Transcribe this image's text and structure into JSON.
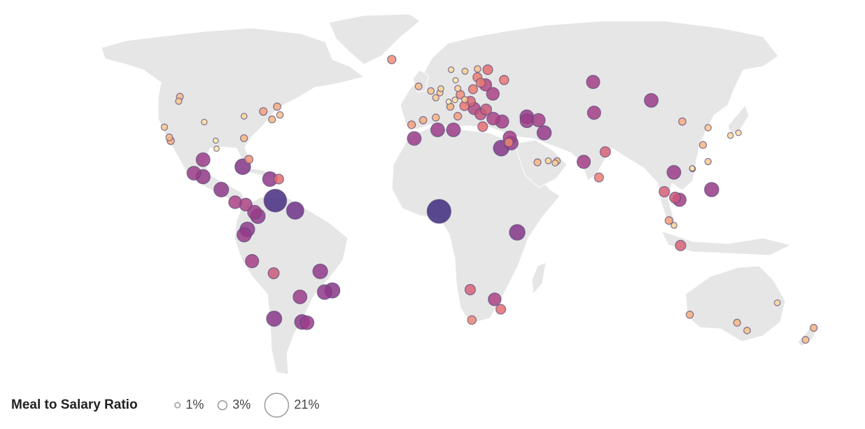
{
  "legend": {
    "title": "Meal to Salary Ratio",
    "sizes": [
      {
        "value": 1,
        "label": "1%"
      },
      {
        "value": 3,
        "label": "3%"
      },
      {
        "value": 21,
        "label": "21%"
      }
    ]
  },
  "colors": [
    "#fcf0ad",
    "#f6b47f",
    "#e8706e",
    "#a63f86",
    "#6b2f8a",
    "#3e2a7e"
  ],
  "points": [
    [
      -9,
      38.7,
      2.2
    ],
    [
      -3.7,
      40.4,
      2
    ],
    [
      2.2,
      41.4,
      1.8
    ],
    [
      2.3,
      48.9,
      1.5
    ],
    [
      -0.1,
      51.5,
      1.6
    ],
    [
      -6.3,
      53.3,
      1.7
    ],
    [
      4.9,
      52.4,
      1.3
    ],
    [
      4.4,
      50.8,
      1.4
    ],
    [
      13.4,
      52.5,
      1.4
    ],
    [
      11.6,
      48.1,
      1.2
    ],
    [
      8.5,
      47.4,
      1.0
    ],
    [
      16.4,
      48.2,
      1.5
    ],
    [
      12.5,
      41.9,
      2.2
    ],
    [
      9.2,
      45.5,
      1.9
    ],
    [
      23.7,
      38,
      3.5
    ],
    [
      21,
      52.2,
      3
    ],
    [
      14.4,
      50.1,
      2.6
    ],
    [
      19,
      47.5,
      3.8
    ],
    [
      26.1,
      44.4,
      4.5
    ],
    [
      23.3,
      42.7,
      4.8
    ],
    [
      20.5,
      44.8,
      5.5
    ],
    [
      30.5,
      50.4,
      6
    ],
    [
      37.6,
      55.8,
      3.2
    ],
    [
      30.3,
      59.9,
      3.5
    ],
    [
      18,
      59.3,
      1.4
    ],
    [
      10.7,
      59.9,
      1.2
    ],
    [
      12.6,
      55.7,
      1.1
    ],
    [
      24.9,
      60.2,
      1.6
    ],
    [
      24.1,
      56.9,
      3
    ],
    [
      25.3,
      54.7,
      3
    ],
    [
      27.6,
      53.9,
      5.5
    ],
    [
      29,
      41,
      6
    ],
    [
      32.9,
      39.9,
      6.5
    ],
    [
      -21.9,
      64.1,
      2.6
    ],
    [
      44.8,
      41.7,
      7
    ],
    [
      44.5,
      40.2,
      7
    ],
    [
      49.9,
      40.4,
      6.5
    ],
    [
      16,
      45.8,
      3.2
    ],
    [
      34.8,
      32.1,
      2.8
    ],
    [
      35.9,
      31.9,
      7
    ],
    [
      31.2,
      30,
      9
    ],
    [
      35.5,
      33.9,
      6.5
    ],
    [
      51.4,
      35.7,
      7.5
    ],
    [
      46.7,
      24.7,
      1.8
    ],
    [
      55.3,
      25.2,
      1.6
    ],
    [
      51.5,
      25.3,
      1.3
    ],
    [
      54.4,
      24.5,
      1.4
    ],
    [
      67,
      24.9,
      6.5
    ],
    [
      77.2,
      28.6,
      4
    ],
    [
      72.9,
      19.1,
      3
    ],
    [
      76.9,
      43.2,
      6.5
    ],
    [
      82.9,
      55,
      6.5
    ],
    [
      106.9,
      47.9,
      7
    ],
    [
      3,
      36.8,
      7
    ],
    [
      10.2,
      36.8,
      7
    ],
    [
      -7.6,
      33.6,
      7
    ],
    [
      3.4,
      6.5,
      21
    ],
    [
      36.8,
      -1.3,
      9
    ],
    [
      17.1,
      -22.6,
      4
    ],
    [
      28,
      -26.2,
      6
    ],
    [
      31,
      -29.9,
      3.5
    ],
    [
      18.4,
      -33.9,
      2.8
    ],
    [
      116.4,
      39.9,
      2
    ],
    [
      127,
      37.6,
      1.5
    ],
    [
      139.7,
      35.7,
      1.2
    ],
    [
      135.5,
      34.7,
      1.3
    ],
    [
      121.5,
      31.2,
      1.8
    ],
    [
      114.2,
      22.3,
      1.3
    ],
    [
      114.1,
      22.5,
      1.1
    ],
    [
      121.6,
      25,
      1.5
    ],
    [
      105.8,
      21,
      7
    ],
    [
      100.5,
      13.8,
      4
    ],
    [
      106.7,
      10.8,
      6.5
    ],
    [
      104.9,
      11.6,
      4.5
    ],
    [
      121,
      14.6,
      7.5
    ],
    [
      101.7,
      3.1,
      2.2
    ],
    [
      103.8,
      1.3,
      1.3
    ],
    [
      106.8,
      -6.2,
      4
    ],
    [
      115.9,
      -31.9,
      1.9
    ],
    [
      138.6,
      -34.9,
      1.8
    ],
    [
      145,
      -37.8,
      1.6
    ],
    [
      153,
      -27.5,
      1.3
    ],
    [
      174.8,
      -36.8,
      1.8
    ],
    [
      174.8,
      -41.3,
      1.7
    ],
    [
      -123.1,
      49.3,
      1.7
    ],
    [
      -122.3,
      47.6,
      1.5
    ],
    [
      -122.4,
      37.8,
      1.5
    ],
    [
      -118.2,
      34,
      1.7
    ],
    [
      -117,
      32.7,
      2
    ],
    [
      -105,
      39.7,
      1.2
    ],
    [
      -87.6,
      41.9,
      1.3
    ],
    [
      -74,
      40.7,
      1.8
    ],
    [
      -71,
      42.4,
      1.6
    ],
    [
      -79.4,
      43.7,
      2.2
    ],
    [
      -73.6,
      45.5,
      2
    ],
    [
      -84.4,
      33.7,
      1.8
    ],
    [
      -96.8,
      32.8,
      1.0
    ],
    [
      -95.4,
      29.8,
      1.1
    ],
    [
      -80.2,
      25.8,
      2.5
    ],
    [
      -100.3,
      25.7,
      7
    ],
    [
      -103.3,
      20.7,
      7
    ],
    [
      -99.1,
      19.4,
      7.5
    ],
    [
      -90.5,
      14.6,
      8
    ],
    [
      -82.4,
      23.1,
      9
    ],
    [
      -69.9,
      18.5,
      8
    ],
    [
      -66.1,
      18.5,
      3.5
    ],
    [
      -79.5,
      9,
      6
    ],
    [
      -84.1,
      9.9,
      6
    ],
    [
      -66.9,
      10.5,
      19
    ],
    [
      -74.1,
      4.7,
      8
    ],
    [
      -75.6,
      6.2,
      7
    ],
    [
      -78.5,
      -0.2,
      8
    ],
    [
      -79.9,
      -2.2,
      7.5
    ],
    [
      -77,
      -12,
      6.5
    ],
    [
      -68.1,
      -16.5,
      4.5
    ],
    [
      -47.9,
      -15.8,
      8
    ],
    [
      -46.6,
      -23.5,
      8
    ],
    [
      -43.2,
      -22.9,
      8.5
    ],
    [
      -70.7,
      -33.4,
      8.5
    ],
    [
      -58.4,
      -34.6,
      8
    ],
    [
      -56.2,
      -34.9,
      7
    ],
    [
      -57.6,
      -25.3,
      7
    ],
    [
      -58.2,
      6.8,
      11
    ]
  ]
}
